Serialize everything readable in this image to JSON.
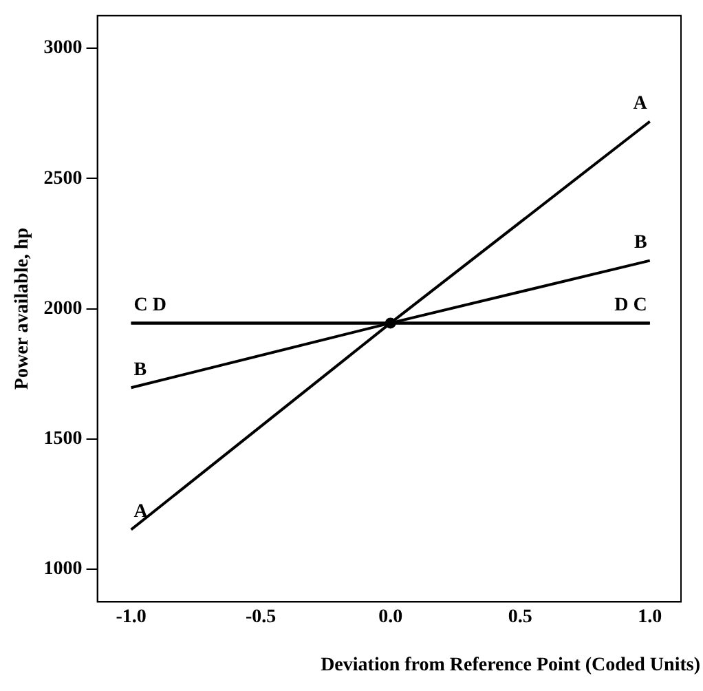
{
  "chart_data": {
    "type": "line",
    "xlabel": "Deviation from Reference Point (Coded Units)",
    "ylabel": "Power available, hp",
    "x": [
      -1,
      0,
      1
    ],
    "series": [
      {
        "name": "A",
        "color": "#000000",
        "values": [
          1152,
          1945,
          2719
        ]
      },
      {
        "name": "B",
        "color": "#000000",
        "values": [
          1697,
          1945,
          2185
        ]
      },
      {
        "name": "C",
        "color": "#000000",
        "values": [
          1945,
          1945,
          1945
        ]
      },
      {
        "name": "D",
        "color": "#000000",
        "values": [
          1945,
          1945,
          1945
        ]
      },
      {
        "type": "scatter",
        "color": "#000000",
        "x": [
          0
        ],
        "values": [
          1945
        ]
      }
    ],
    "xlim": [
      -1.13,
      1.12
    ],
    "ylim": [
      875,
      3125
    ],
    "xticks": [
      {
        "value": -1,
        "label": "-1.0"
      },
      -0.5,
      {
        "value": 0,
        "label": "0.0"
      },
      0.5,
      {
        "value": 1,
        "label": "1.0"
      }
    ],
    "yticks": [
      1000,
      1500,
      2000,
      2500,
      3000
    ],
    "grid": false,
    "legend": false,
    "line_style": "solid"
  }
}
